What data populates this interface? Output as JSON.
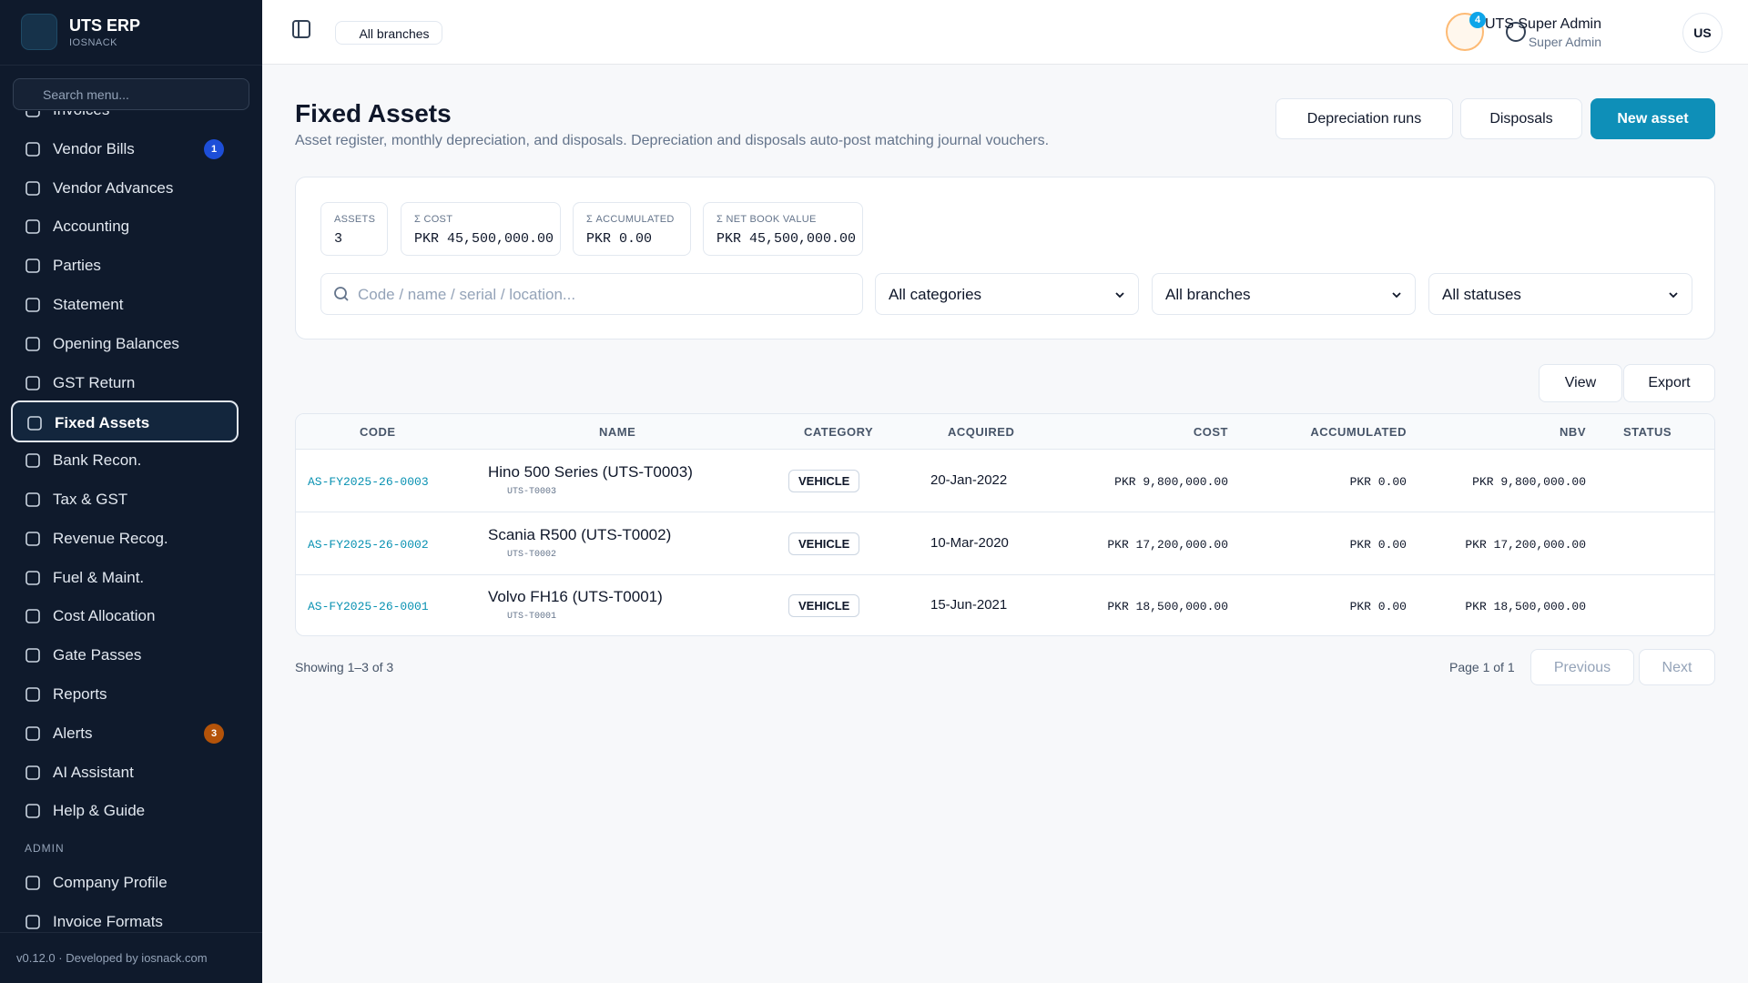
{
  "sidebar": {
    "brand": "UTS ERP",
    "org": "IOSNACK",
    "search_placeholder": "Search menu...",
    "items": [
      {
        "label": "Invoices"
      },
      {
        "label": "Vendor Bills",
        "badge": "1"
      },
      {
        "label": "Vendor Advances"
      },
      {
        "label": "Accounting"
      },
      {
        "label": "Parties"
      },
      {
        "label": "Statement"
      },
      {
        "label": "Opening Balances"
      },
      {
        "label": "GST Return"
      },
      {
        "label": "Fixed Assets",
        "active": true
      },
      {
        "label": "Bank Recon."
      },
      {
        "label": "Tax & GST"
      },
      {
        "label": "Revenue Recog."
      },
      {
        "label": "Fuel & Maint."
      },
      {
        "label": "Cost Allocation"
      },
      {
        "label": "Gate Passes"
      },
      {
        "label": "Reports"
      },
      {
        "label": "Alerts",
        "badge": "3",
        "badge_color": "amber"
      },
      {
        "label": "AI Assistant"
      },
      {
        "label": "Help & Guide"
      }
    ],
    "section": "ADMIN",
    "admin_items": [
      {
        "label": "Company Profile"
      },
      {
        "label": "Invoice Formats"
      }
    ],
    "footer": "v0.12.0 · Developed by iosnack.com"
  },
  "topbar": {
    "branch": "All branches",
    "notifications": "4",
    "user_name": "UTS Super Admin",
    "user_role": "Super Admin",
    "avatar": "US"
  },
  "page": {
    "title": "Fixed Assets",
    "subtitle": "Asset register, monthly depreciation, and disposals. Depreciation and disposals auto-post matching journal vouchers.",
    "buttons": [
      "Depreciation runs",
      "Disposals",
      "New asset"
    ]
  },
  "stats": [
    {
      "label": "ASSETS",
      "value": "3"
    },
    {
      "label": "Σ COST",
      "value": "PKR 45,500,000.00"
    },
    {
      "label": "Σ ACCUMULATED",
      "value": "PKR 0.00"
    },
    {
      "label": "Σ NET BOOK VALUE",
      "value": "PKR 45,500,000.00"
    }
  ],
  "filters": {
    "search_placeholder": "Code / name / serial / location...",
    "selects": [
      "All categories",
      "All branches",
      "All statuses"
    ]
  },
  "table_actions": [
    "View",
    "Export"
  ],
  "table": {
    "columns": [
      "CODE",
      "NAME",
      "CATEGORY",
      "ACQUIRED",
      "COST",
      "ACCUMULATED",
      "NBV",
      "STATUS"
    ],
    "rows": [
      {
        "code": "AS-FY2025-26-0003",
        "name": "Hino 500 Series (UTS-T0003)",
        "tag": "UTS-T0003",
        "category": "VEHICLE",
        "acquired": "20-Jan-2022",
        "cost": "PKR 9,800,000.00",
        "accumulated": "PKR 0.00",
        "nbv": "PKR 9,800,000.00"
      },
      {
        "code": "AS-FY2025-26-0002",
        "name": "Scania R500 (UTS-T0002)",
        "tag": "UTS-T0002",
        "category": "VEHICLE",
        "acquired": "10-Mar-2020",
        "cost": "PKR 17,200,000.00",
        "accumulated": "PKR 0.00",
        "nbv": "PKR 17,200,000.00"
      },
      {
        "code": "AS-FY2025-26-0001",
        "name": "Volvo FH16 (UTS-T0001)",
        "tag": "UTS-T0001",
        "category": "VEHICLE",
        "acquired": "15-Jun-2021",
        "cost": "PKR 18,500,000.00",
        "accumulated": "PKR 0.00",
        "nbv": "PKR 18,500,000.00"
      }
    ]
  },
  "footer": {
    "showing": "Showing 1–3 of 3",
    "page": "Page 1 of 1",
    "prev": "Previous",
    "next": "Next"
  }
}
